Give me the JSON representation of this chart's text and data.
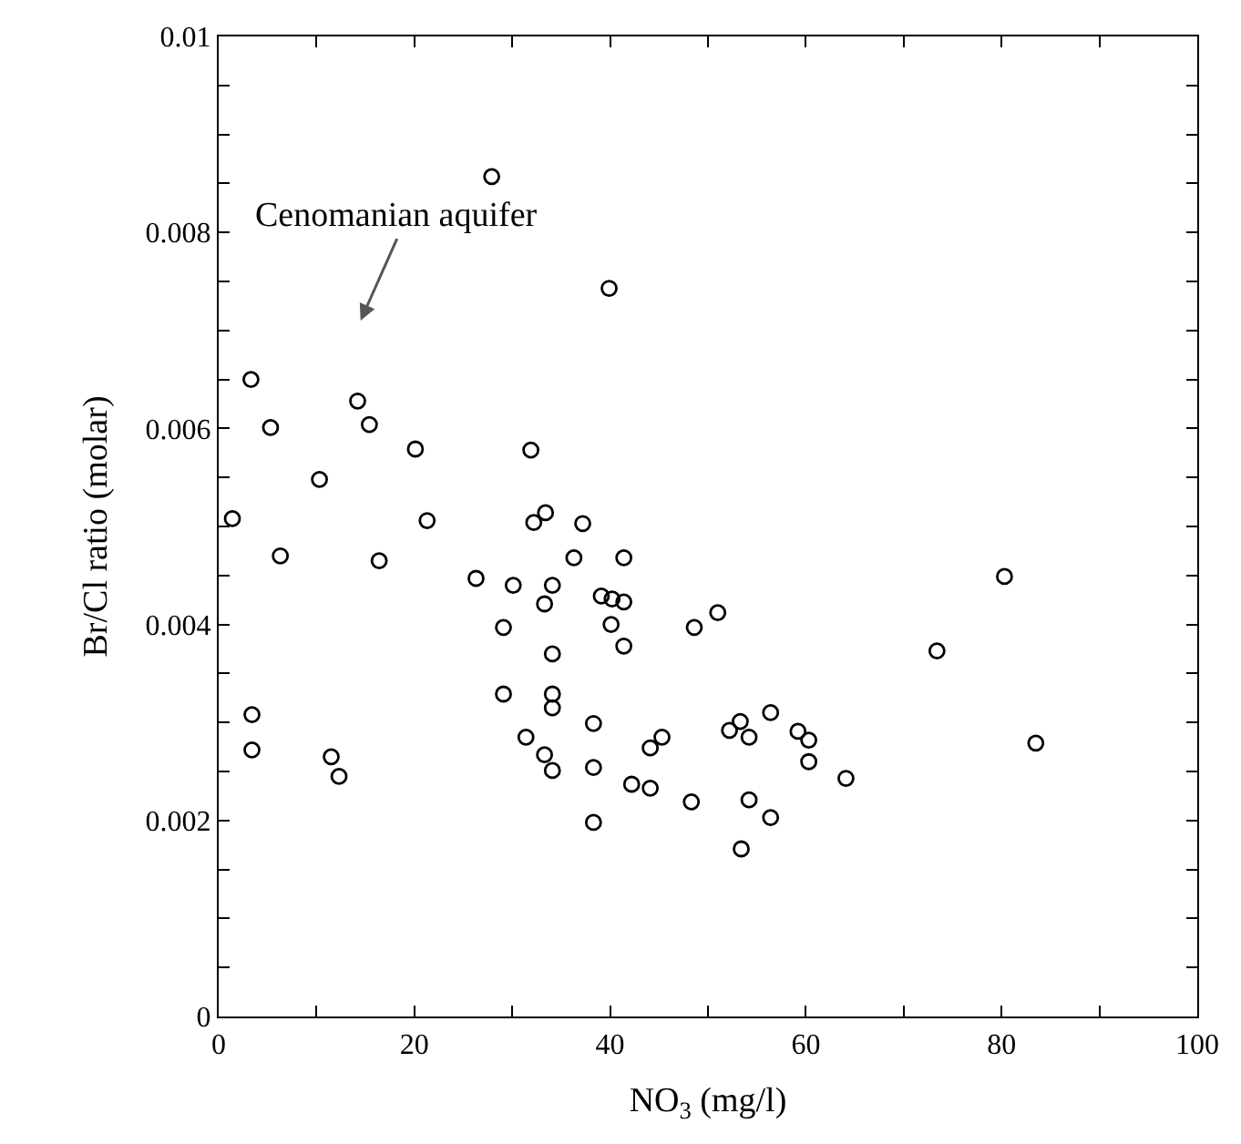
{
  "chart_data": {
    "type": "scatter",
    "xlabel": "NO$_{3}$ (mg/l)",
    "ylabel": "Br/Cl ratio (molar)",
    "xlim": [
      0,
      100
    ],
    "ylim": [
      0,
      0.01
    ],
    "xticks": [
      0,
      {
        "value": 10,
        "label": null
      },
      20,
      {
        "value": 30,
        "label": null
      },
      40,
      {
        "value": 50,
        "label": null
      },
      60,
      {
        "value": 70,
        "label": null
      },
      80,
      {
        "value": 90,
        "label": null
      },
      100
    ],
    "yticks": [
      0,
      {
        "value": 0.0005,
        "label": null
      },
      {
        "value": 0.001,
        "label": null
      },
      {
        "value": 0.0015,
        "label": null
      },
      0.002,
      {
        "value": 0.0025,
        "label": null
      },
      {
        "value": 0.003,
        "label": null
      },
      {
        "value": 0.0035,
        "label": null
      },
      0.004,
      {
        "value": 0.0045,
        "label": null
      },
      {
        "value": 0.005,
        "label": null
      },
      {
        "value": 0.0055,
        "label": null
      },
      0.006,
      {
        "value": 0.0065,
        "label": null
      },
      {
        "value": 0.007,
        "label": null
      },
      {
        "value": 0.0075,
        "label": null
      },
      0.008,
      {
        "value": 0.0085,
        "label": null
      },
      {
        "value": 0.009,
        "label": null
      },
      {
        "value": 0.0095,
        "label": null
      },
      0.01
    ],
    "marker": "circle",
    "annotations": [
      "Cenomanian aquifer"
    ],
    "series": [
      {
        "color": "#000000",
        "x": [
          3.3,
          5.3,
          14.2,
          15.4,
          10.3,
          1.4,
          20.1,
          31.9,
          21.3,
          32.2,
          33.4,
          6.3,
          16.4,
          26.3,
          30.1,
          29.1,
          29.1,
          3.4,
          3.4,
          11.5,
          12.3,
          31.4,
          39.9,
          27.9,
          37.2,
          36.3,
          41.4,
          34.1,
          33.3,
          39.1,
          40.2,
          41.4,
          40.1,
          41.4,
          48.6,
          51.0,
          34.1,
          34.1,
          34.1,
          33.3,
          34.1,
          38.3,
          38.3,
          38.3,
          42.2,
          44.1,
          44.1,
          45.3,
          48.3,
          52.2,
          53.3,
          54.2,
          56.4,
          54.2,
          56.4,
          53.4,
          59.2,
          60.3,
          60.3,
          64.1,
          80.3,
          73.4,
          83.5
        ],
        "values": [
          0.0065,
          0.00601,
          0.00628,
          0.00604,
          0.00548,
          0.00508,
          0.00579,
          0.00578,
          0.00506,
          0.00504,
          0.00514,
          0.0047,
          0.00465,
          0.00447,
          0.0044,
          0.00397,
          0.00329,
          0.00308,
          0.00272,
          0.00265,
          0.00245,
          0.00285,
          0.00743,
          0.00857,
          0.00503,
          0.00468,
          0.00468,
          0.0044,
          0.00421,
          0.00429,
          0.00426,
          0.00423,
          0.004,
          0.00378,
          0.00397,
          0.00412,
          0.0037,
          0.00329,
          0.00315,
          0.00267,
          0.00251,
          0.00299,
          0.00254,
          0.00198,
          0.00237,
          0.00233,
          0.00274,
          0.00285,
          0.00219,
          0.00292,
          0.00301,
          0.00285,
          0.0031,
          0.00221,
          0.00203,
          0.00171,
          0.00291,
          0.00282,
          0.0026,
          0.00243,
          0.00449,
          0.00373,
          0.00279
        ]
      }
    ]
  }
}
